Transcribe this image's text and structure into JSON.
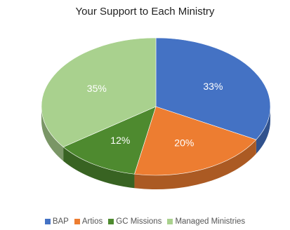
{
  "chart_data": {
    "type": "pie",
    "title": "Your Support to Each Ministry",
    "legend_position": "bottom",
    "style": "3d",
    "slices": [
      {
        "name": "BAP",
        "value": 33,
        "label": "33%",
        "color": "#4472C4"
      },
      {
        "name": "Artios",
        "value": 20,
        "label": "20%",
        "color": "#ED7D31"
      },
      {
        "name": "GC Missions",
        "value": 12,
        "label": "12%",
        "color": "#4E8A2F"
      },
      {
        "name": "Managed Ministries",
        "value": 35,
        "label": "35%",
        "color": "#A9D18E"
      }
    ]
  }
}
